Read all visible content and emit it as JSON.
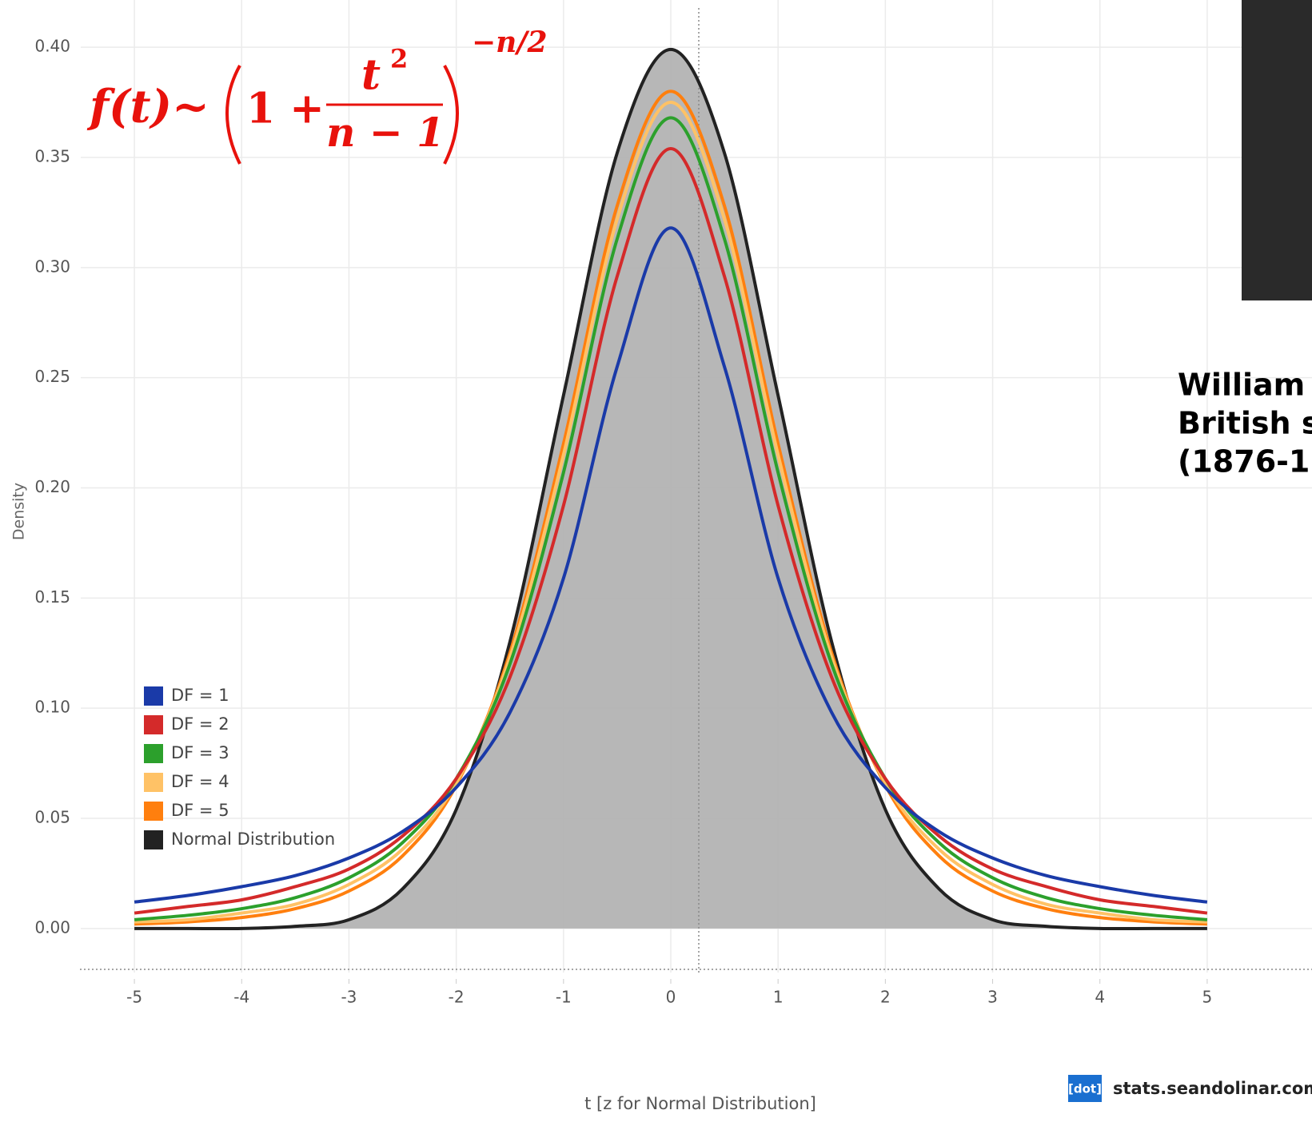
{
  "chart_data": {
    "type": "line",
    "x_label": "t [z for Normal Distribution]",
    "y_label": "Density",
    "xlim": [
      -5.5,
      5.5
    ],
    "ylim": [
      -0.02,
      0.42
    ],
    "xticks": [
      -5,
      -4,
      -3,
      -2,
      -1,
      0,
      1,
      2,
      3,
      4,
      5
    ],
    "yticks": [
      {
        "value": 0,
        "label": "0.00"
      },
      0.05,
      {
        "value": 0.1,
        "label": "0.10"
      },
      0.15,
      {
        "value": 0.2,
        "label": "0.20"
      },
      0.25,
      {
        "value": 0.3,
        "label": "0.30"
      },
      0.35,
      {
        "value": 0.4,
        "label": "0.40"
      }
    ],
    "grid": true,
    "legend_position": "lower-left",
    "x": [
      -5,
      -4.5,
      -4,
      -3.5,
      -3,
      -2.5,
      -2,
      -1.5,
      -1,
      -0.5,
      0,
      0.5,
      1,
      1.5,
      2,
      2.5,
      3,
      3.5,
      4,
      4.5,
      5
    ],
    "series": [
      {
        "name": "DF = 1",
        "color": "#1a3aa8",
        "values": [
          0.012,
          0.015,
          0.019,
          0.024,
          0.032,
          0.044,
          0.064,
          0.098,
          0.159,
          0.255,
          0.318,
          0.255,
          0.159,
          0.098,
          0.064,
          0.044,
          0.032,
          0.024,
          0.019,
          0.015,
          0.012
        ]
      },
      {
        "name": "DF = 2",
        "color": "#d42a2a",
        "values": [
          0.007,
          0.01,
          0.013,
          0.019,
          0.027,
          0.042,
          0.068,
          0.114,
          0.192,
          0.296,
          0.354,
          0.296,
          0.192,
          0.114,
          0.068,
          0.042,
          0.027,
          0.019,
          0.013,
          0.01,
          0.007
        ]
      },
      {
        "name": "DF = 3",
        "color": "#2ca02c",
        "values": [
          0.004,
          0.006,
          0.009,
          0.014,
          0.023,
          0.039,
          0.068,
          0.12,
          0.207,
          0.313,
          0.368,
          0.313,
          0.207,
          0.12,
          0.068,
          0.039,
          0.023,
          0.014,
          0.009,
          0.006,
          0.004
        ]
      },
      {
        "name": "DF = 4",
        "color": "#ffc266",
        "values": [
          0.003,
          0.004,
          0.007,
          0.011,
          0.02,
          0.036,
          0.066,
          0.123,
          0.215,
          0.322,
          0.375,
          0.322,
          0.215,
          0.123,
          0.066,
          0.036,
          0.02,
          0.011,
          0.007,
          0.004,
          0.003
        ]
      },
      {
        "name": "DF = 5",
        "color": "#ff7f0e",
        "values": [
          0.002,
          0.003,
          0.005,
          0.009,
          0.017,
          0.033,
          0.065,
          0.125,
          0.22,
          0.328,
          0.38,
          0.328,
          0.22,
          0.125,
          0.065,
          0.033,
          0.017,
          0.009,
          0.005,
          0.003,
          0.002
        ]
      },
      {
        "name": "Normal Distribution",
        "color": "#222222",
        "fill_color": "#b3b3b3",
        "values": [
          0,
          0,
          0,
          0.001,
          0.004,
          0.018,
          0.054,
          0.13,
          0.242,
          0.352,
          0.399,
          0.352,
          0.242,
          0.13,
          0.054,
          0.018,
          0.004,
          0.001,
          0,
          0,
          0
        ]
      }
    ]
  },
  "formula": {
    "lhs": "f(t)~",
    "one_plus": "1 +",
    "numerator": "t",
    "numerator_power": "2",
    "denominator": "n − 1",
    "power": "−n/2"
  },
  "portrait_caption": [
    "William",
    "British s",
    "(1876-1"
  ],
  "watermark": {
    "logo": "[dot]",
    "site": "stats.seandolinar.com"
  }
}
